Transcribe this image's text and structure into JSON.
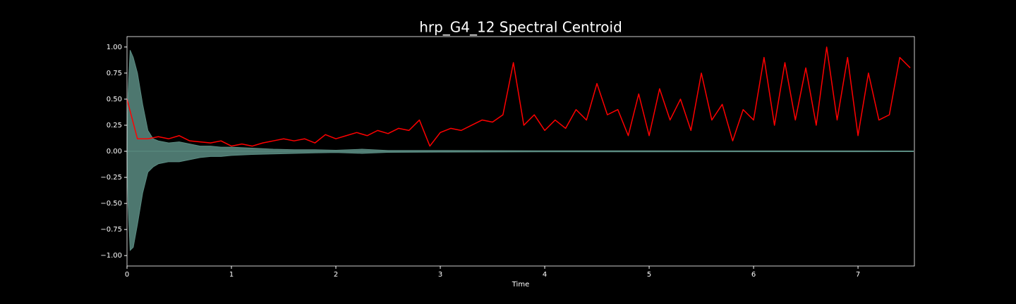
{
  "chart_data": {
    "type": "line",
    "title": "hrp_G4_12 Spectral Centroid",
    "xlabel": "Time",
    "xlim": [
      0,
      7.54
    ],
    "ylim": [
      -1.1,
      1.1
    ],
    "xticks": [
      0,
      1,
      2,
      3,
      4,
      5,
      6,
      7
    ],
    "yticks": [
      {
        "value": -1,
        "label": "−1.00"
      },
      {
        "value": -0.75,
        "label": "−0.75"
      },
      {
        "value": -0.5,
        "label": "−0.50"
      },
      {
        "value": -0.25,
        "label": "−0.25"
      },
      {
        "value": 0,
        "label": "0.00"
      },
      {
        "value": 0.25,
        "label": "0.25"
      },
      {
        "value": 0.5,
        "label": "0.50"
      },
      {
        "value": 0.75,
        "label": "0.75"
      },
      {
        "value": 1,
        "label": "1.00"
      }
    ],
    "envelope": {
      "color": "#5b8c82",
      "x": [
        0,
        0.01,
        0.03,
        0.06,
        0.1,
        0.15,
        0.2,
        0.25,
        0.3,
        0.4,
        0.5,
        0.6,
        0.7,
        0.8,
        0.9,
        1.0,
        1.2,
        1.4,
        1.6,
        1.8,
        2.0,
        2.25,
        2.5,
        3.0,
        4.0,
        5.0,
        6.0,
        7.0,
        7.53
      ],
      "upper": [
        0,
        0.55,
        0.97,
        0.9,
        0.75,
        0.45,
        0.2,
        0.12,
        0.1,
        0.08,
        0.09,
        0.07,
        0.05,
        0.05,
        0.04,
        0.04,
        0.03,
        0.02,
        0.015,
        0.015,
        0.01,
        0.02,
        0.008,
        0.008,
        0.005,
        0.005,
        0.004,
        0.004,
        0.003
      ],
      "lower": [
        0,
        -0.5,
        -0.95,
        -0.92,
        -0.7,
        -0.4,
        -0.2,
        -0.15,
        -0.12,
        -0.1,
        -0.1,
        -0.08,
        -0.06,
        -0.05,
        -0.05,
        -0.04,
        -0.03,
        -0.025,
        -0.02,
        -0.015,
        -0.012,
        -0.02,
        -0.01,
        -0.008,
        -0.005,
        -0.005,
        -0.004,
        -0.004,
        -0.003
      ]
    },
    "x": [
      0,
      0.1,
      0.2,
      0.3,
      0.4,
      0.5,
      0.6,
      0.7,
      0.8,
      0.9,
      1.0,
      1.1,
      1.2,
      1.3,
      1.4,
      1.5,
      1.6,
      1.7,
      1.8,
      1.9,
      2.0,
      2.1,
      2.2,
      2.3,
      2.4,
      2.5,
      2.6,
      2.7,
      2.8,
      2.9,
      3.0,
      3.1,
      3.2,
      3.3,
      3.4,
      3.5,
      3.6,
      3.7,
      3.8,
      3.9,
      4.0,
      4.1,
      4.2,
      4.3,
      4.4,
      4.5,
      4.6,
      4.7,
      4.8,
      4.9,
      5.0,
      5.1,
      5.2,
      5.3,
      5.4,
      5.5,
      5.6,
      5.7,
      5.8,
      5.9,
      6.0,
      6.1,
      6.2,
      6.3,
      6.4,
      6.5,
      6.6,
      6.7,
      6.8,
      6.9,
      7.0,
      7.1,
      7.2,
      7.3,
      7.4,
      7.5
    ],
    "series": [
      {
        "color": "#ff0000",
        "values": [
          0.5,
          0.12,
          0.12,
          0.14,
          0.12,
          0.15,
          0.1,
          0.09,
          0.08,
          0.1,
          0.05,
          0.07,
          0.05,
          0.08,
          0.1,
          0.12,
          0.1,
          0.12,
          0.08,
          0.16,
          0.12,
          0.15,
          0.18,
          0.15,
          0.2,
          0.17,
          0.22,
          0.2,
          0.3,
          0.05,
          0.18,
          0.22,
          0.2,
          0.25,
          0.3,
          0.28,
          0.35,
          0.85,
          0.25,
          0.35,
          0.2,
          0.3,
          0.22,
          0.4,
          0.3,
          0.65,
          0.35,
          0.4,
          0.15,
          0.55,
          0.15,
          0.6,
          0.3,
          0.5,
          0.2,
          0.75,
          0.3,
          0.45,
          0.1,
          0.4,
          0.3,
          0.9,
          0.25,
          0.85,
          0.3,
          0.8,
          0.25,
          1.0,
          0.3,
          0.9,
          0.15,
          0.75,
          0.3,
          0.35,
          0.9,
          0.8
        ]
      }
    ]
  }
}
